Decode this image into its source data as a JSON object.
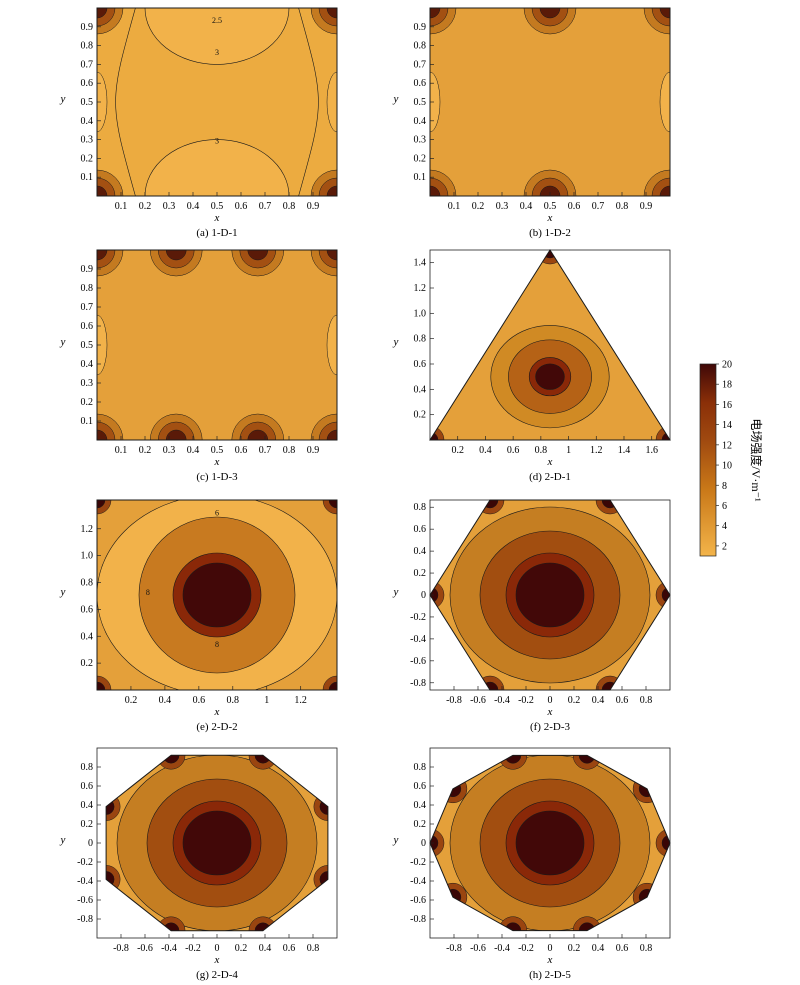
{
  "colors": {
    "low": "#f3b44a",
    "mid": "#c97818",
    "high": "#8a2f08",
    "peak": "#400808",
    "line": "#1a1a1a",
    "axis": "#222222"
  },
  "colorbar": {
    "title": "电场强度/V·m⁻¹",
    "ticks": [
      "2",
      "4",
      "6",
      "8",
      "10",
      "12",
      "14",
      "16",
      "18",
      "20"
    ],
    "min": 1,
    "max": 20
  },
  "chart_data": [
    {
      "id": "a",
      "caption": "(a) 1-D-1",
      "type": "heatmap",
      "shape": "square",
      "xlabel": "x",
      "ylabel": "y",
      "xticks": [
        "0.1",
        "0.2",
        "0.3",
        "0.4",
        "0.5",
        "0.6",
        "0.7",
        "0.8",
        "0.9"
      ],
      "yticks": [
        "0.1",
        "0.2",
        "0.3",
        "0.4",
        "0.5",
        "0.6",
        "0.7",
        "0.8",
        "0.9"
      ],
      "xlim": [
        0,
        1
      ],
      "ylim": [
        0,
        1
      ],
      "contour_labels": [
        [
          "2.5",
          0.5,
          0.92
        ],
        [
          "3",
          0.5,
          0.75
        ],
        [
          "3",
          0.5,
          0.28
        ]
      ]
    },
    {
      "id": "b",
      "caption": "(b) 1-D-2",
      "type": "heatmap",
      "shape": "square",
      "xlabel": "x",
      "ylabel": "y",
      "xticks": [
        "0.1",
        "0.2",
        "0.3",
        "0.4",
        "0.5",
        "0.6",
        "0.7",
        "0.8",
        "0.9"
      ],
      "yticks": [
        "0.1",
        "0.2",
        "0.3",
        "0.4",
        "0.5",
        "0.6",
        "0.7",
        "0.8",
        "0.9"
      ],
      "xlim": [
        0,
        1
      ],
      "ylim": [
        0,
        1
      ],
      "contour_labels": []
    },
    {
      "id": "c",
      "caption": "(c) 1-D-3",
      "type": "heatmap",
      "shape": "square",
      "xlabel": "x",
      "ylabel": "y",
      "xticks": [
        "0.1",
        "0.2",
        "0.3",
        "0.4",
        "0.5",
        "0.6",
        "0.7",
        "0.8",
        "0.9"
      ],
      "yticks": [
        "0.1",
        "0.2",
        "0.3",
        "0.4",
        "0.5",
        "0.6",
        "0.7",
        "0.8",
        "0.9"
      ],
      "xlim": [
        0,
        1
      ],
      "ylim": [
        0,
        1
      ],
      "contour_labels": []
    },
    {
      "id": "d",
      "caption": "(d) 2-D-1",
      "type": "heatmap",
      "shape": "triangle",
      "xlabel": "x",
      "ylabel": "y",
      "xticks": [
        "0.2",
        "0.4",
        "0.6",
        "0.8",
        "1",
        "1.2",
        "1.4",
        "1.6"
      ],
      "yticks": [
        "0.2",
        "0.4",
        "0.6",
        "0.8",
        "1.0",
        "1.2",
        "1.4"
      ],
      "xlim": [
        0,
        1.732
      ],
      "ylim": [
        0,
        1.5
      ],
      "contour_labels": []
    },
    {
      "id": "e",
      "caption": "(e) 2-D-2",
      "type": "heatmap",
      "shape": "square",
      "xlabel": "x",
      "ylabel": "y",
      "xticks": [
        "0.2",
        "0.4",
        "0.6",
        "0.8",
        "1",
        "1.2"
      ],
      "yticks": [
        "0.2",
        "0.4",
        "0.6",
        "0.8",
        "1.0",
        "1.2"
      ],
      "xlim": [
        0,
        1.414
      ],
      "ylim": [
        0,
        1.414
      ],
      "contour_labels": [
        [
          "6",
          0.707,
          1.3
        ],
        [
          "8",
          0.707,
          0.32
        ],
        [
          "8",
          0.3,
          0.707
        ]
      ]
    },
    {
      "id": "f",
      "caption": "(f) 2-D-3",
      "type": "heatmap",
      "shape": "hexagon",
      "xlabel": "x",
      "ylabel": "y",
      "xticks": [
        "-0.8",
        "-0.6",
        "-0.4",
        "-0.2",
        "0",
        "0.2",
        "0.4",
        "0.6",
        "0.8"
      ],
      "yticks": [
        "-0.8",
        "-0.6",
        "-0.4",
        "-0.2",
        "0",
        "0.2",
        "0.4",
        "0.6",
        "0.8"
      ],
      "xlim": [
        -1,
        1
      ],
      "ylim": [
        -0.866,
        0.866
      ],
      "contour_labels": []
    },
    {
      "id": "g",
      "caption": "(g) 2-D-4",
      "type": "heatmap",
      "shape": "octagon",
      "xlabel": "x",
      "ylabel": "y",
      "xticks": [
        "-0.8",
        "-0.6",
        "-0.4",
        "-0.2",
        "0",
        "0.2",
        "0.4",
        "0.6",
        "0.8"
      ],
      "yticks": [
        "-0.8",
        "-0.6",
        "-0.4",
        "-0.2",
        "0",
        "0.2",
        "0.4",
        "0.6",
        "0.8"
      ],
      "xlim": [
        -1,
        1
      ],
      "ylim": [
        -1,
        1
      ],
      "contour_labels": []
    },
    {
      "id": "h",
      "caption": "(h) 2-D-5",
      "type": "heatmap",
      "shape": "decagon",
      "xlabel": "x",
      "ylabel": "y",
      "xticks": [
        "-0.8",
        "-0.6",
        "-0.4",
        "-0.2",
        "0",
        "0.2",
        "0.4",
        "0.6",
        "0.8"
      ],
      "yticks": [
        "-0.8",
        "-0.6",
        "-0.4",
        "-0.2",
        "0",
        "0.2",
        "0.4",
        "0.6",
        "0.8"
      ],
      "xlim": [
        -1,
        1
      ],
      "ylim": [
        -1,
        1
      ],
      "contour_labels": []
    }
  ]
}
